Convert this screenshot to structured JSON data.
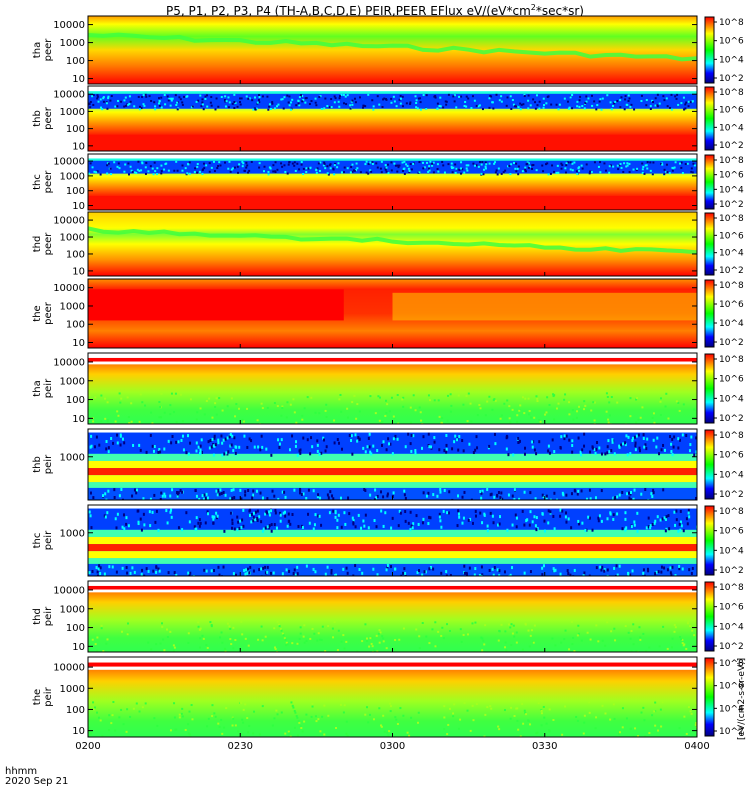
{
  "title_prefix": "P5, P1, P2, P3, P4 (TH-A,B,C,D,E) PEIR,PEER EFlux eV/(eV*cm",
  "title_suffix": "*sec*sr)",
  "x_info": [
    "hhmm",
    "2020 Sep 21"
  ],
  "colorbar_unit": "[eV/(cm2-s-sr-eV)]",
  "colors": {
    "red": "#ff0000",
    "yellow": "#ffff00",
    "green": "#00ff00",
    "cyan": "#00ffff",
    "blue": "#0000ff",
    "navy": "#000080"
  },
  "chart_data": {
    "type": "heatmap",
    "xlabel": "hhmm",
    "x_ticks": [
      "0200",
      "0230",
      "0300",
      "0330",
      "0400"
    ],
    "colorbar_ticks": [
      "10^2",
      "10^4",
      "10^6",
      "10^8"
    ],
    "panels": [
      {
        "id": "tha_peer",
        "label": [
          "tha",
          "peer"
        ],
        "y_ticks": [
          "10000",
          "1000",
          "100",
          "10"
        ],
        "ylim": [
          5,
          30000
        ],
        "pattern": "peer_a"
      },
      {
        "id": "thb_peer",
        "label": [
          "thb",
          "peer"
        ],
        "y_ticks": [
          "10000",
          "1000",
          "100",
          "10"
        ],
        "ylim": [
          5,
          30000
        ],
        "pattern": "peer_noise"
      },
      {
        "id": "thc_peer",
        "label": [
          "thc",
          "peer"
        ],
        "y_ticks": [
          "10000",
          "1000",
          "100",
          "10"
        ],
        "ylim": [
          5,
          30000
        ],
        "pattern": "peer_noise"
      },
      {
        "id": "thd_peer",
        "label": [
          "thd",
          "peer"
        ],
        "y_ticks": [
          "10000",
          "1000",
          "100",
          "10"
        ],
        "ylim": [
          5,
          30000
        ],
        "pattern": "peer_d"
      },
      {
        "id": "the_peer",
        "label": [
          "the",
          "peer"
        ],
        "y_ticks": [
          "10000",
          "1000",
          "100",
          "10"
        ],
        "ylim": [
          5,
          30000
        ],
        "pattern": "peer_e"
      },
      {
        "id": "tha_peir",
        "label": [
          "tha",
          "peir"
        ],
        "y_ticks": [
          "10000",
          "1000",
          "100",
          "10"
        ],
        "ylim": [
          5,
          30000
        ],
        "pattern": "peir"
      },
      {
        "id": "thb_peir",
        "label": [
          "thb",
          "peir"
        ],
        "y_ticks": [
          "1000"
        ],
        "ylim": [
          5,
          30000
        ],
        "pattern": "peir_noise"
      },
      {
        "id": "thc_peir",
        "label": [
          "thc",
          "peir"
        ],
        "y_ticks": [
          "1000"
        ],
        "ylim": [
          5,
          30000
        ],
        "pattern": "peir_noise"
      },
      {
        "id": "thd_peir",
        "label": [
          "thd",
          "peir"
        ],
        "y_ticks": [
          "10000",
          "1000",
          "100",
          "10"
        ],
        "ylim": [
          5,
          30000
        ],
        "pattern": "peir"
      },
      {
        "id": "the_peir",
        "label": [
          "the",
          "peir"
        ],
        "y_ticks": [
          "10000",
          "1000",
          "100",
          "10"
        ],
        "ylim": [
          5,
          30000
        ],
        "pattern": "peir"
      }
    ]
  }
}
